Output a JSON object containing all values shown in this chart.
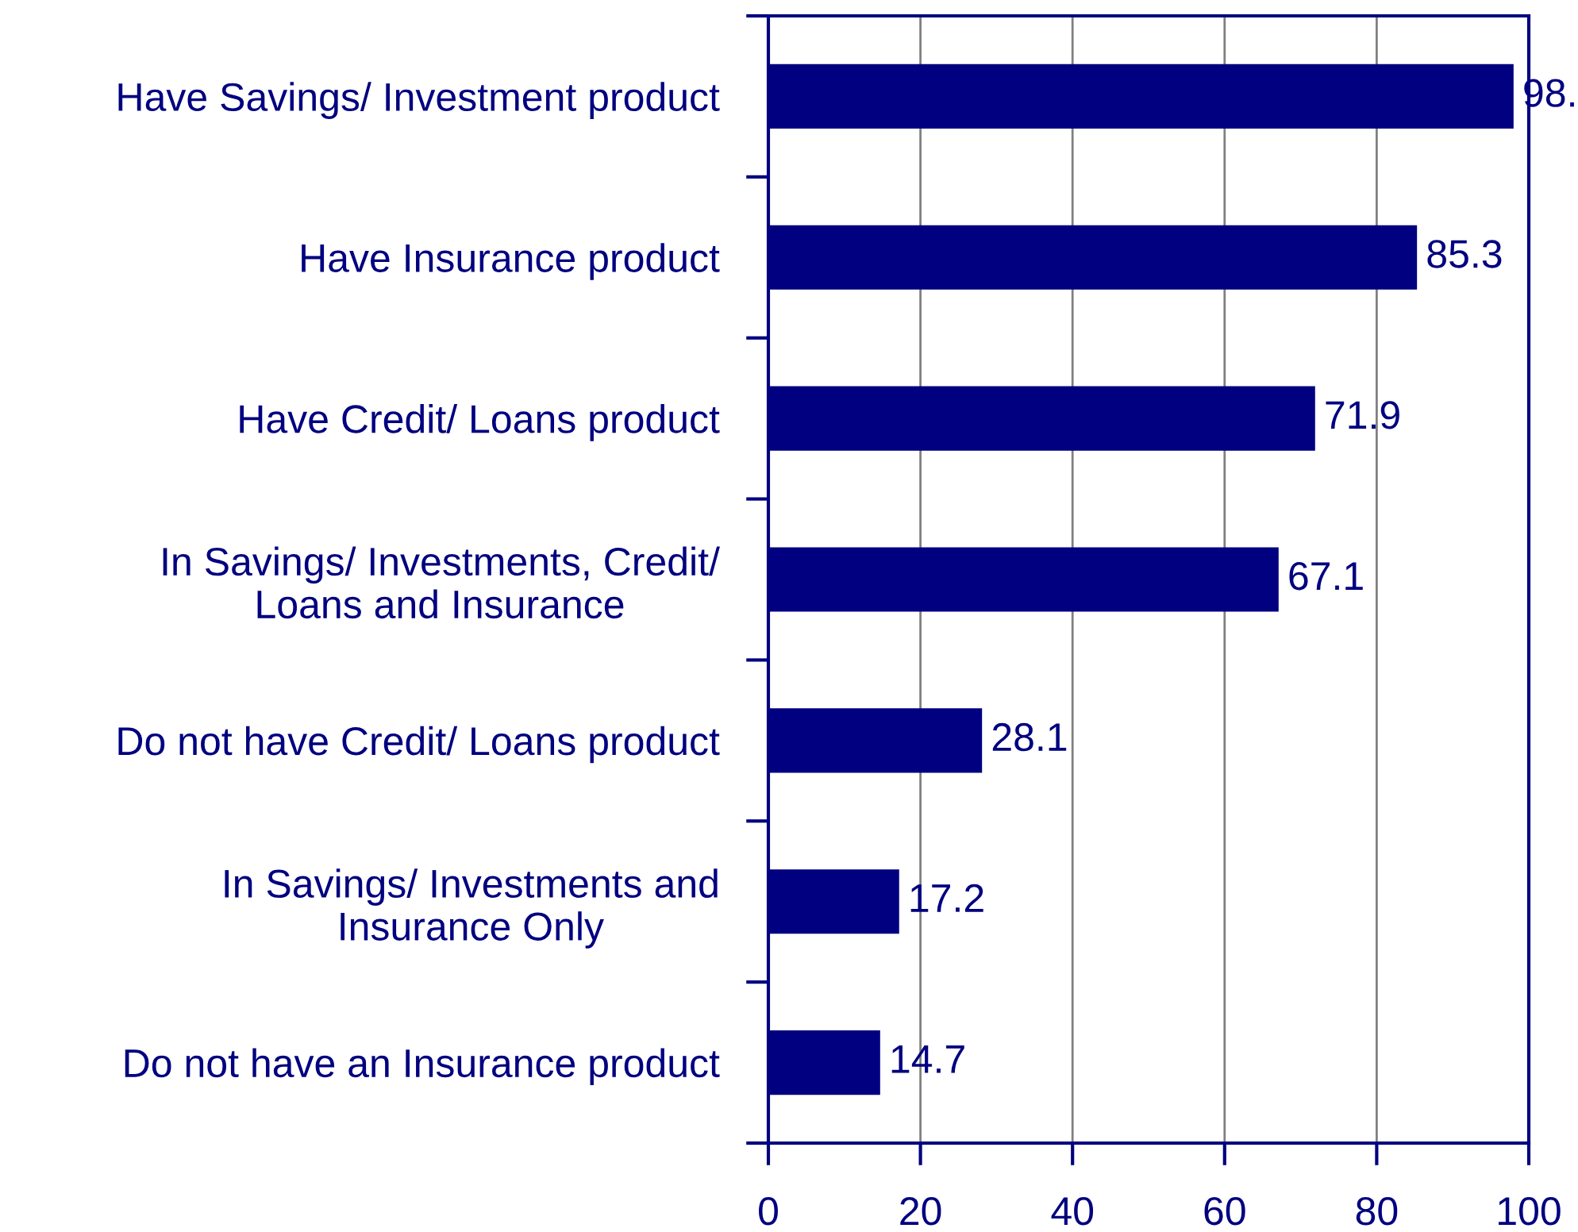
{
  "chart_data": {
    "type": "bar",
    "orientation": "horizontal",
    "categories": [
      "Have Savings/ Investment product",
      "Have Insurance product",
      "Have Credit/ Loans product",
      "In Savings/ Investments, Credit/\nLoans and Insurance",
      "Do not have Credit/ Loans product",
      "In Savings/ Investments and\nInsurance Only",
      "Do not have an Insurance product"
    ],
    "values": [
      98,
      85.3,
      71.9,
      67.1,
      28.1,
      17.2,
      14.7
    ],
    "value_labels": [
      "98.",
      "85.3",
      "71.9",
      "67.1",
      "28.1",
      "17.2",
      "14.7"
    ],
    "color": "#000080",
    "xlim": [
      0,
      100
    ],
    "xticks": [
      0,
      20,
      40,
      60,
      80,
      100
    ],
    "grid": "x"
  }
}
